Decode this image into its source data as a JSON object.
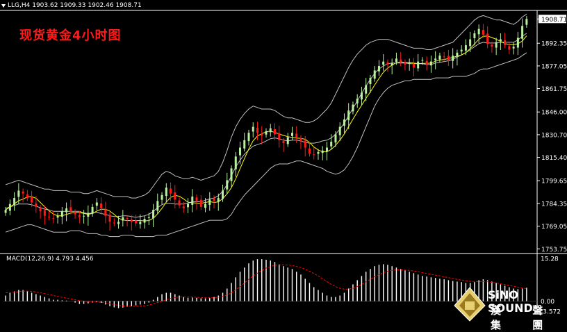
{
  "header": {
    "symbol_info": "LLG,H4  1903.62 1909.33 1902.46 1908.71",
    "title": "现货黄金4小时图"
  },
  "macd": {
    "label": "MACD(12,26,9) 4.793 4.456",
    "axis_top": "15.28",
    "axis_zero": "0.00",
    "axis_bottom": "-3.572"
  },
  "watermark": {
    "brand": "SiNO SOUND",
    "sub": "漢 聲 集 團"
  },
  "colors": {
    "background": "#000000",
    "bull": "#b8f0a0",
    "bear": "#ff1a1a",
    "ma": "#ffff00",
    "bands": "#c0c0c0",
    "signal": "#ff0000",
    "histogram": "#ffffff",
    "current_price_tag": "#ffffff"
  },
  "chart_data": {
    "type": "candlestick",
    "title": "现货黄金4小时图",
    "symbol": "LLG",
    "timeframe": "H4",
    "ohlc_last": {
      "open": 1903.62,
      "high": 1909.33,
      "low": 1902.46,
      "close": 1908.71
    },
    "y_ticks": [
      1908.71,
      1892.35,
      1877.05,
      1861.75,
      1846.0,
      1830.7,
      1815.4,
      1799.65,
      1784.35,
      1769.05,
      1753.75
    ],
    "ylim": [
      1752,
      1914
    ],
    "closes": [
      1780,
      1784,
      1788,
      1793,
      1791,
      1788,
      1785,
      1782,
      1779,
      1776,
      1775,
      1774,
      1776,
      1779,
      1781,
      1779,
      1777,
      1775,
      1776,
      1778,
      1782,
      1785,
      1781,
      1776,
      1772,
      1771,
      1772,
      1775,
      1774,
      1772,
      1771,
      1772,
      1774,
      1775,
      1780,
      1786,
      1790,
      1795,
      1791,
      1787,
      1783,
      1781,
      1784,
      1789,
      1786,
      1782,
      1784,
      1787,
      1786,
      1788,
      1793,
      1800,
      1808,
      1816,
      1822,
      1827,
      1832,
      1836,
      1832,
      1830,
      1833,
      1835,
      1831,
      1827,
      1825,
      1829,
      1832,
      1829,
      1826,
      1822,
      1818,
      1817,
      1819,
      1820,
      1822,
      1826,
      1831,
      1836,
      1841,
      1847,
      1851,
      1855,
      1859,
      1864,
      1869,
      1874,
      1877,
      1880,
      1878,
      1879,
      1882,
      1880,
      1878,
      1879,
      1876,
      1880,
      1881,
      1878,
      1880,
      1882,
      1884,
      1883,
      1881,
      1884,
      1886,
      1888,
      1891,
      1895,
      1899,
      1902,
      1898,
      1892,
      1890,
      1893,
      1895,
      1891,
      1888,
      1890,
      1896,
      1904,
      1908.71
    ],
    "bands_upper": [
      1797,
      1798,
      1799,
      1800,
      1799,
      1798,
      1797,
      1796,
      1795,
      1794,
      1794,
      1793,
      1793,
      1793,
      1793,
      1792,
      1792,
      1792,
      1791,
      1791,
      1792,
      1793,
      1792,
      1791,
      1790,
      1789,
      1789,
      1789,
      1789,
      1788,
      1788,
      1789,
      1790,
      1792,
      1796,
      1800,
      1804,
      1806,
      1805,
      1803,
      1802,
      1801,
      1801,
      1802,
      1801,
      1800,
      1801,
      1802,
      1803,
      1806,
      1812,
      1820,
      1829,
      1836,
      1841,
      1845,
      1848,
      1850,
      1849,
      1848,
      1848,
      1848,
      1847,
      1845,
      1843,
      1842,
      1842,
      1841,
      1840,
      1839,
      1839,
      1840,
      1842,
      1845,
      1848,
      1852,
      1858,
      1864,
      1870,
      1876,
      1881,
      1885,
      1888,
      1891,
      1893,
      1894,
      1895,
      1895,
      1895,
      1894,
      1893,
      1892,
      1891,
      1890,
      1889,
      1889,
      1889,
      1888,
      1888,
      1889,
      1890,
      1891,
      1892,
      1893,
      1896,
      1899,
      1902,
      1905,
      1908,
      1910,
      1911,
      1910,
      1909,
      1908,
      1908,
      1907,
      1906,
      1905,
      1907,
      1910,
      1912
    ],
    "bands_lower": [
      1765,
      1766,
      1767,
      1768,
      1769,
      1770,
      1770,
      1769,
      1768,
      1767,
      1766,
      1765,
      1765,
      1765,
      1765,
      1766,
      1766,
      1766,
      1765,
      1764,
      1764,
      1764,
      1763,
      1763,
      1762,
      1762,
      1762,
      1763,
      1763,
      1763,
      1762,
      1762,
      1762,
      1762,
      1762,
      1763,
      1763,
      1763,
      1764,
      1765,
      1766,
      1767,
      1768,
      1769,
      1770,
      1771,
      1772,
      1773,
      1773,
      1773,
      1773,
      1774,
      1777,
      1782,
      1786,
      1790,
      1793,
      1796,
      1799,
      1802,
      1805,
      1808,
      1810,
      1811,
      1811,
      1811,
      1812,
      1813,
      1813,
      1812,
      1811,
      1810,
      1809,
      1808,
      1806,
      1805,
      1804,
      1805,
      1807,
      1811,
      1816,
      1822,
      1829,
      1836,
      1843,
      1850,
      1855,
      1859,
      1862,
      1864,
      1865,
      1866,
      1867,
      1867,
      1868,
      1868,
      1868,
      1868,
      1868,
      1869,
      1869,
      1869,
      1869,
      1870,
      1870,
      1870,
      1870,
      1871,
      1872,
      1874,
      1875,
      1875,
      1876,
      1877,
      1878,
      1879,
      1880,
      1881,
      1882,
      1884,
      1886
    ],
    "macd_hist": [
      2,
      3,
      3.5,
      4,
      4,
      3.5,
      3,
      2.5,
      2,
      1.5,
      1,
      0.5,
      0.5,
      0.3,
      0.2,
      0,
      -0.5,
      -1,
      -1,
      -0.8,
      -0.5,
      -0.3,
      -0.6,
      -1.2,
      -1.8,
      -2.2,
      -2.5,
      -2.3,
      -2,
      -1.8,
      -1.5,
      -1.2,
      -1,
      -0.5,
      0.5,
      1.5,
      2.5,
      3,
      3,
      2.5,
      2,
      1.5,
      1.2,
      1.3,
      1.2,
      1,
      1,
      1.2,
      1.5,
      2,
      3,
      4.5,
      6.5,
      8.5,
      10.5,
      12,
      13.5,
      14.5,
      15,
      15,
      14.8,
      14.5,
      14,
      13.2,
      12.5,
      12,
      11.5,
      10.5,
      9.5,
      8,
      6.5,
      5,
      4,
      3,
      2,
      1.5,
      1.5,
      2,
      3,
      4.5,
      6,
      7.5,
      9,
      10.5,
      11.5,
      12.5,
      13,
      13.2,
      13,
      12.5,
      12,
      11.5,
      11,
      10.5,
      10,
      9.5,
      9,
      8.8,
      8.5,
      8.3,
      8,
      7.8,
      7.5,
      7.2,
      7,
      6.8,
      6.5,
      6.5,
      6.8,
      7.5,
      7.8,
      7.5,
      7,
      6.5,
      6,
      5.5,
      5,
      4.5,
      4.3,
      4.5,
      4.793
    ],
    "macd_signal": [
      3,
      3,
      3.2,
      3.4,
      3.6,
      3.6,
      3.5,
      3.3,
      3,
      2.7,
      2.4,
      2,
      1.7,
      1.4,
      1.1,
      0.8,
      0.5,
      0.2,
      0,
      -0.2,
      -0.3,
      -0.3,
      -0.4,
      -0.6,
      -0.9,
      -1.2,
      -1.5,
      -1.7,
      -1.8,
      -1.8,
      -1.8,
      -1.7,
      -1.6,
      -1.4,
      -1,
      -0.5,
      0,
      0.5,
      1,
      1.3,
      1.5,
      1.5,
      1.5,
      1.5,
      1.4,
      1.3,
      1.2,
      1.2,
      1.3,
      1.4,
      1.7,
      2.2,
      3,
      4,
      5.2,
      6.5,
      7.8,
      9,
      10,
      11,
      11.8,
      12.4,
      12.8,
      13,
      13,
      12.9,
      12.7,
      12.4,
      12,
      11.4,
      10.7,
      9.9,
      9,
      8,
      7,
      6,
      5.2,
      4.6,
      4.3,
      4.3,
      4.6,
      5.2,
      6,
      6.9,
      7.8,
      8.7,
      9.5,
      10.2,
      10.7,
      11,
      11.2,
      11.2,
      11.1,
      11,
      10.8,
      10.5,
      10.2,
      9.9,
      9.6,
      9.3,
      9,
      8.7,
      8.4,
      8.1,
      7.8,
      7.5,
      7.3,
      7.1,
      7,
      7,
      7,
      6.9,
      6.7,
      6.5,
      6.2,
      5.9,
      5.6,
      5.3,
      5,
      4.7,
      4.456
    ],
    "macd_ylim": [
      -3.572,
      15.28
    ]
  }
}
